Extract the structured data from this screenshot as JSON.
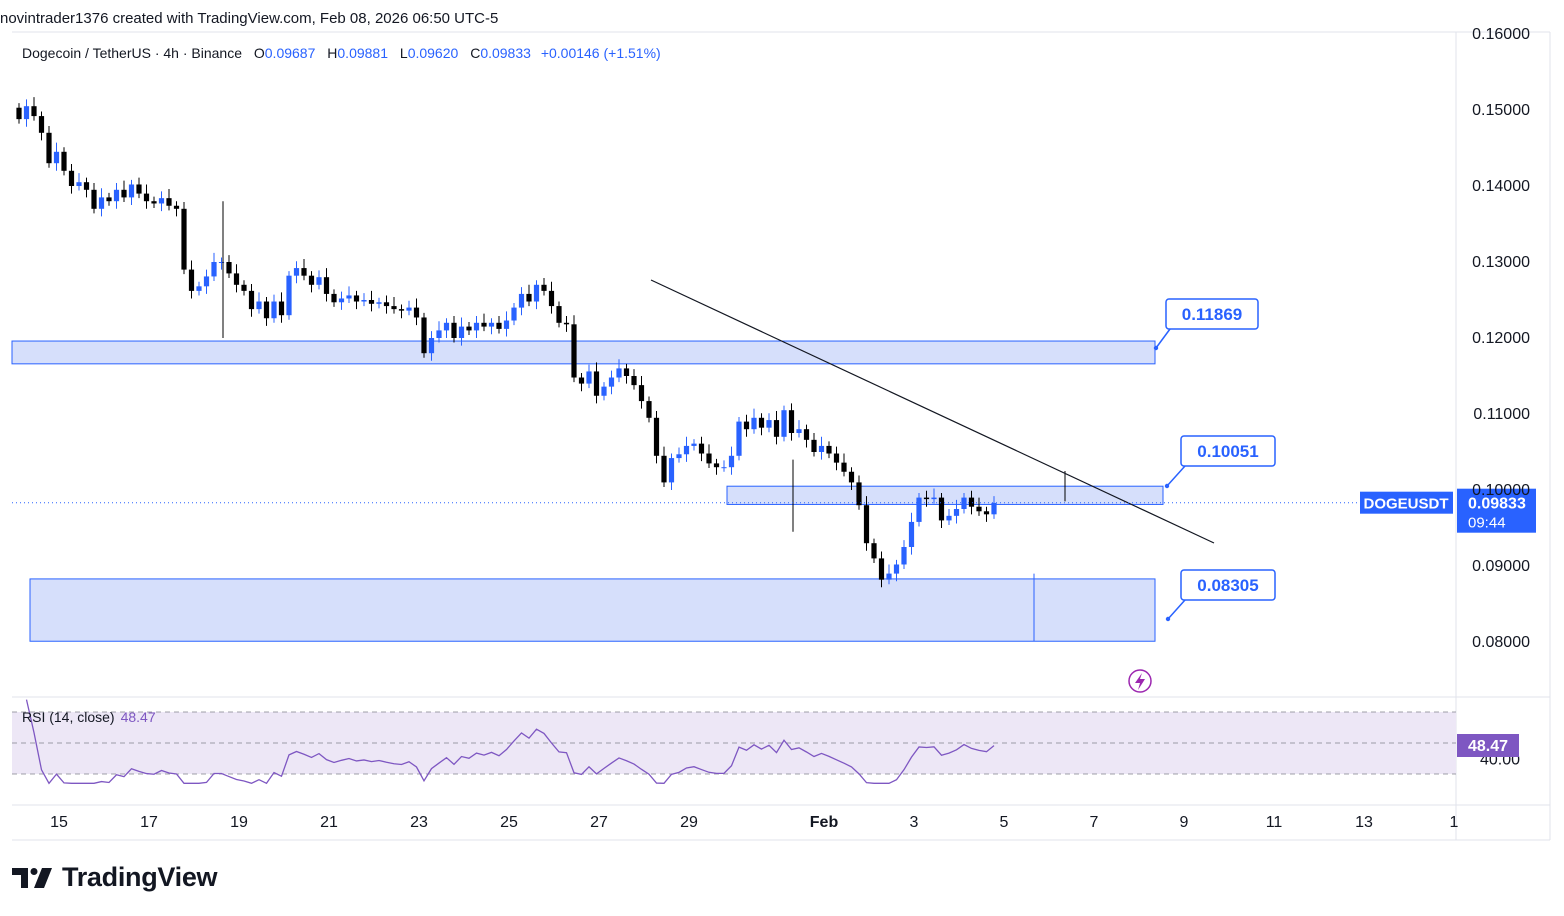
{
  "header": {
    "text": "novintrader1376 created with TradingView.com, Feb 08, 2026 06:50 UTC-5"
  },
  "legend": {
    "symbol": "Dogecoin / TetherUS · 4h · Binance",
    "open_label": "O",
    "open": "0.09687",
    "high_label": "H",
    "high": "0.09881",
    "low_label": "L",
    "low": "0.09620",
    "close_label": "C",
    "close": "0.09833",
    "change": "+0.00146 (+1.51%)"
  },
  "price_tag": {
    "symbol": "DOGEUSDT",
    "price": "0.09833",
    "countdown": "09:44"
  },
  "zones": [
    {
      "label": "0.11869",
      "top": 0.1196,
      "bottom": 0.1166,
      "from_date": "Jan 14",
      "to_date": "Feb 8"
    },
    {
      "label": "0.10051",
      "top": 0.1005,
      "bottom": 0.0981,
      "from_date": "Jan 30",
      "to_date": "Feb 8"
    },
    {
      "label": "0.08305",
      "top": 0.0883,
      "bottom": 0.0801,
      "from_date": "Jan 14",
      "to_date": "Feb 8"
    }
  ],
  "rsi": {
    "label": "RSI (14, close)",
    "value": "48.47",
    "tick": "40.00",
    "upper": 70,
    "lower": 30
  },
  "brand": {
    "name": "TradingView"
  },
  "colors": {
    "up": "#2962ff",
    "down": "#000000",
    "zone_fill": "#d1dcfb",
    "zone_border": "#2962ff",
    "rsi_line": "#7e57c2",
    "rsi_band": "#ede7f6"
  },
  "chart_data": {
    "type": "candlestick",
    "timeframe": "4h",
    "y_axis": {
      "range": [
        0.075,
        0.16
      ],
      "ticks": [
        "0.16000",
        "0.15000",
        "0.14000",
        "0.13000",
        "0.12000",
        "0.11000",
        "0.10000",
        "0.09000",
        "0.08000"
      ]
    },
    "x_axis": {
      "ticks": [
        "15",
        "17",
        "19",
        "21",
        "23",
        "25",
        "27",
        "29",
        "Feb",
        "3",
        "5",
        "7",
        "9",
        "11",
        "13",
        "1"
      ]
    },
    "trendline": {
      "from": [
        "Jan 28 00:00",
        0.128
      ],
      "to": [
        "Feb 9 12:00",
        0.0945
      ]
    },
    "close_series": [
      0.1488,
      0.1505,
      0.1492,
      0.147,
      0.143,
      0.1445,
      0.142,
      0.14,
      0.1405,
      0.1395,
      0.137,
      0.1385,
      0.138,
      0.1395,
      0.1385,
      0.1402,
      0.139,
      0.138,
      0.1377,
      0.1384,
      0.1374,
      0.137,
      0.129,
      0.1262,
      0.1268,
      0.1281,
      0.13,
      0.13,
      0.1285,
      0.127,
      0.1262,
      0.1238,
      0.1248,
      0.1226,
      0.1248,
      0.123,
      0.1282,
      0.1292,
      0.1282,
      0.127,
      0.128,
      0.1258,
      0.1247,
      0.1252,
      0.1256,
      0.1248,
      0.125,
      0.1245,
      0.1247,
      0.1242,
      0.1238,
      0.1236,
      0.124,
      0.1227,
      0.118,
      0.12,
      0.121,
      0.122,
      0.12,
      0.1215,
      0.121,
      0.122,
      0.1215,
      0.122,
      0.1212,
      0.1223,
      0.124,
      0.1258,
      0.1248,
      0.127,
      0.1262,
      0.1242,
      0.122,
      0.1218,
      0.1148,
      0.114,
      0.1156,
      0.1124,
      0.1136,
      0.1148,
      0.116,
      0.115,
      0.1138,
      0.1117,
      0.1095,
      0.1045,
      0.101,
      0.1042,
      0.1047,
      0.1058,
      0.1061,
      0.1048,
      0.1035,
      0.103,
      0.103,
      0.1045,
      0.109,
      0.108,
      0.1095,
      0.1082,
      0.1092,
      0.107,
      0.1105,
      0.1075,
      0.108,
      0.1066,
      0.105,
      0.1058,
      0.1048,
      0.1036,
      0.1024,
      0.101,
      0.098,
      0.093,
      0.091,
      0.0882,
      0.089,
      0.0902,
      0.0925,
      0.0958,
      0.099,
      0.0988,
      0.099,
      0.096,
      0.0966,
      0.0975,
      0.099,
      0.0978,
      0.0972,
      0.0968,
      0.0983
    ]
  }
}
